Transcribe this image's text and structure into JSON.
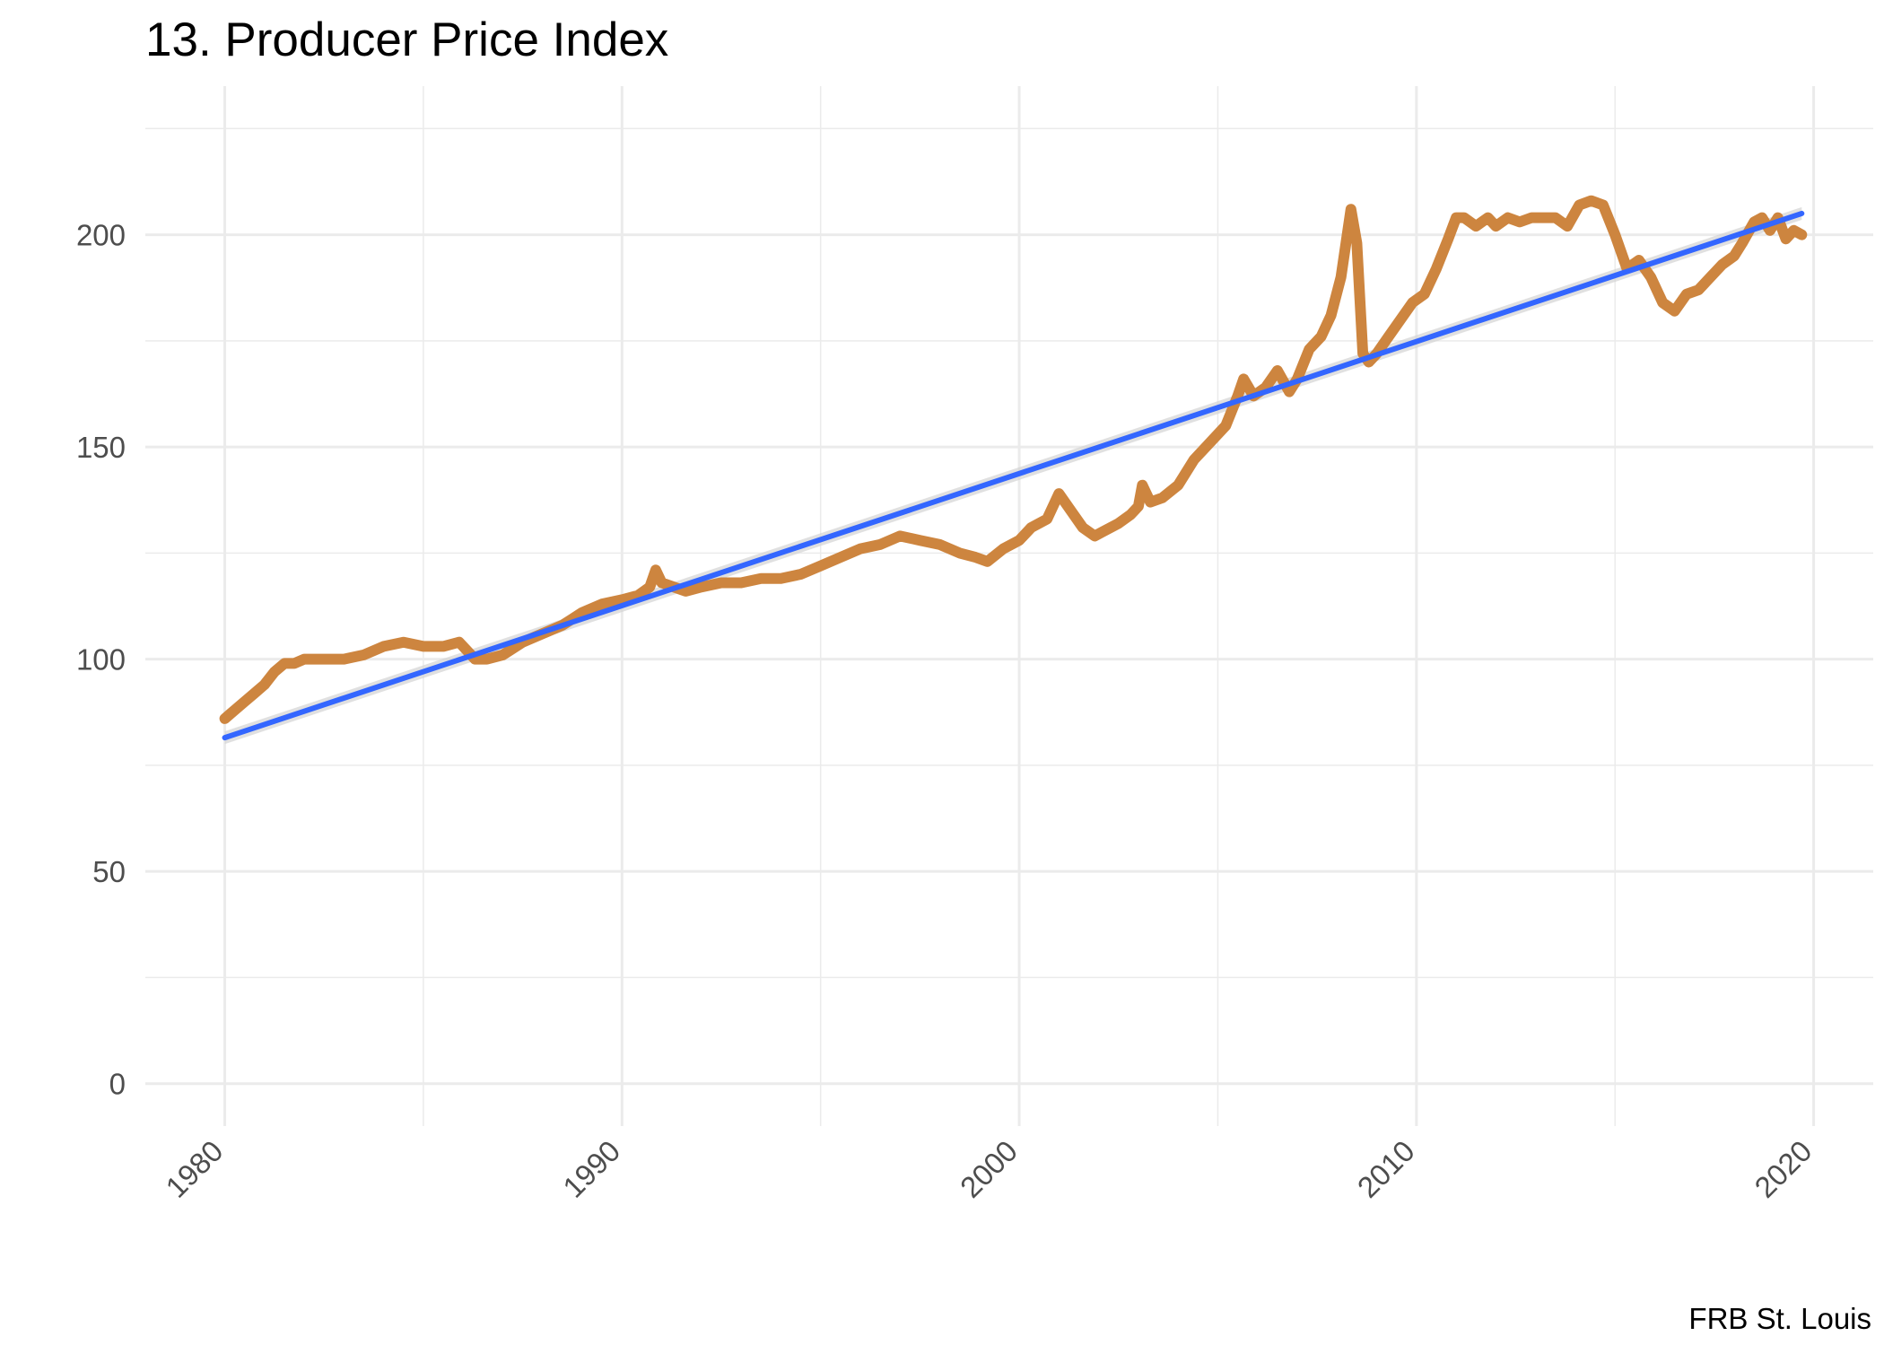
{
  "chart_data": {
    "type": "line",
    "title": "13. Producer Price Index",
    "caption": "FRB St. Louis",
    "xlabel": "",
    "ylabel": "",
    "xlim": [
      1978,
      2021.5
    ],
    "ylim": [
      -10,
      235
    ],
    "x_ticks": [
      1980,
      1990,
      2000,
      2010,
      2020
    ],
    "y_ticks": [
      0,
      50,
      100,
      150,
      200
    ],
    "grid": true,
    "legend": "none",
    "colors": {
      "series": "#cd853f",
      "trend": "#3366ff",
      "band": "#d3d3d3",
      "grid": "#ebebeb",
      "tick_text": "#4d4d4d"
    },
    "series": [
      {
        "x": [
          1980.0,
          1980.25,
          1980.5,
          1980.75,
          1981.0,
          1981.25,
          1981.5,
          1981.75,
          1982.0,
          1982.5,
          1983.0,
          1983.5,
          1984.0,
          1984.5,
          1985.0,
          1985.5,
          1985.9,
          1986.3,
          1986.6,
          1987.0,
          1987.5,
          1988.0,
          1988.5,
          1989.0,
          1989.5,
          1990.0,
          1990.4,
          1990.7,
          1990.85,
          1991.0,
          1991.3,
          1991.6,
          1992.0,
          1992.5,
          1993.0,
          1993.5,
          1994.0,
          1994.5,
          1995.0,
          1995.5,
          1996.0,
          1996.5,
          1997.0,
          1997.5,
          1998.0,
          1998.5,
          1998.9,
          1999.2,
          1999.6,
          2000.0,
          2000.3,
          2000.7,
          2001.0,
          2001.3,
          2001.6,
          2001.9,
          2002.1,
          2002.5,
          2002.8,
          2003.0,
          2003.1,
          2003.3,
          2003.6,
          2004.0,
          2004.4,
          2004.8,
          2005.2,
          2005.5,
          2005.65,
          2005.9,
          2006.2,
          2006.5,
          2006.8,
          2007.0,
          2007.3,
          2007.6,
          2007.85,
          2008.1,
          2008.35,
          2008.5,
          2008.65,
          2008.8,
          2009.0,
          2009.3,
          2009.6,
          2009.9,
          2010.2,
          2010.5,
          2010.8,
          2011.0,
          2011.2,
          2011.5,
          2011.8,
          2012.0,
          2012.3,
          2012.6,
          2012.9,
          2013.2,
          2013.5,
          2013.8,
          2014.1,
          2014.4,
          2014.7,
          2015.0,
          2015.3,
          2015.6,
          2015.9,
          2016.2,
          2016.5,
          2016.8,
          2017.1,
          2017.4,
          2017.7,
          2018.0,
          2018.2,
          2018.5,
          2018.7,
          2018.9,
          2019.1,
          2019.3,
          2019.5,
          2019.7
        ],
        "values": [
          86,
          88,
          90,
          92,
          94,
          97,
          99,
          99,
          100,
          100,
          100,
          101,
          103,
          104,
          103,
          103,
          104,
          100,
          100,
          101,
          104,
          106,
          108,
          111,
          113,
          114,
          115,
          117,
          121,
          118,
          117,
          116,
          117,
          118,
          118,
          119,
          119,
          120,
          122,
          124,
          126,
          127,
          129,
          128,
          127,
          125,
          124,
          123,
          126,
          128,
          131,
          133,
          139,
          135,
          131,
          129,
          130,
          132,
          134,
          136,
          141,
          137,
          138,
          141,
          147,
          151,
          155,
          162,
          166,
          162,
          164,
          168,
          163,
          166,
          173,
          176,
          181,
          190,
          206,
          198,
          172,
          170,
          172,
          176,
          180,
          184,
          186,
          192,
          199,
          204,
          204,
          202,
          204,
          202,
          204,
          203,
          204,
          204,
          204,
          202,
          207,
          208,
          207,
          200,
          192,
          194,
          190,
          184,
          182,
          186,
          187,
          190,
          193,
          195,
          198,
          203,
          204,
          201,
          204,
          199,
          201,
          200
        ]
      }
    ],
    "trend": {
      "x": [
        1980,
        2019.7
      ],
      "values": [
        81.5,
        205.0
      ],
      "band": 1.5
    }
  }
}
